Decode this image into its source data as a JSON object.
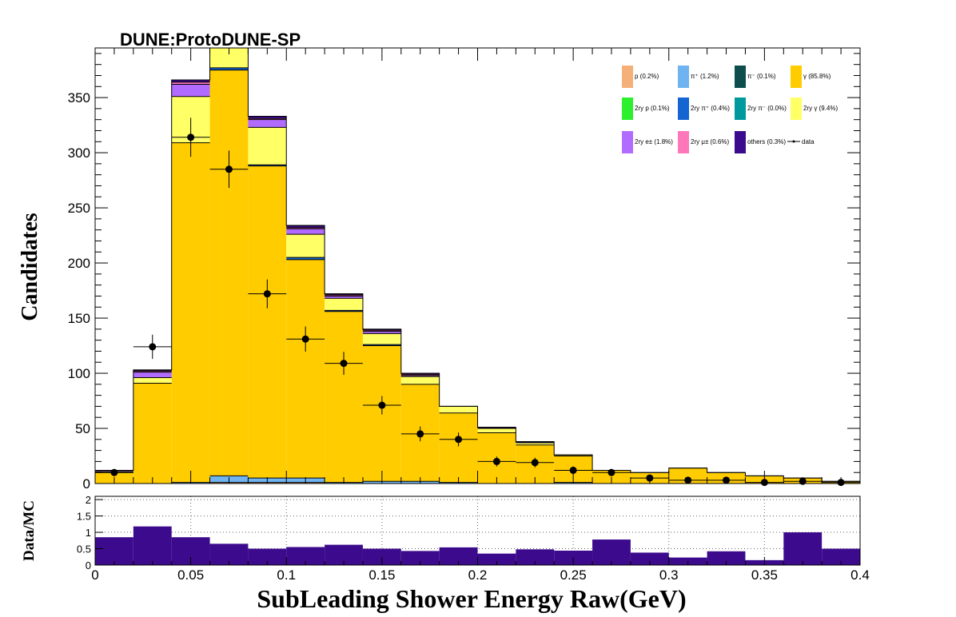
{
  "chart_data": {
    "type": "bar",
    "title": "DUNE:ProtoDUNE-SP",
    "xlabel": "SubLeading Shower Energy Raw(GeV)",
    "ylabel": "Candidates",
    "xlim": [
      0,
      0.4
    ],
    "ylim": [
      0,
      395
    ],
    "x_ticks": [
      "0",
      "0.05",
      "0.1",
      "0.15",
      "0.2",
      "0.25",
      "0.3",
      "0.35",
      "0.4"
    ],
    "y_ticks": [
      "0",
      "50",
      "100",
      "150",
      "200",
      "250",
      "300",
      "350"
    ],
    "stacked": true,
    "bin_edges": [
      0,
      0.02,
      0.04,
      0.06,
      0.08,
      0.1,
      0.12,
      0.14,
      0.16,
      0.18,
      0.2,
      0.22,
      0.24,
      0.26,
      0.28,
      0.3,
      0.32,
      0.34,
      0.36,
      0.38,
      0.4
    ],
    "series": [
      {
        "name": "p (0.2%)",
        "color": "#f5b07a",
        "values": [
          0,
          0,
          0,
          1,
          1,
          1,
          0,
          0,
          0,
          0,
          0,
          0,
          0,
          0,
          0,
          0,
          0,
          0,
          0,
          0
        ]
      },
      {
        "name": "π⁺ (1.2%)",
        "color": "#6fb4f0",
        "values": [
          0,
          0,
          1,
          6,
          4,
          4,
          1,
          2,
          2,
          1,
          0,
          0,
          1,
          0,
          0,
          0,
          0,
          0,
          0,
          0
        ]
      },
      {
        "name": "π⁻ (0.1%)",
        "color": "#0d4d4d",
        "values": [
          0,
          0,
          0,
          0,
          0,
          0,
          0,
          0,
          0,
          0,
          0,
          0,
          0,
          0,
          0,
          0,
          0,
          0,
          0,
          0
        ]
      },
      {
        "name": "γ (85.8%)",
        "color": "#ffcc00",
        "values": [
          10,
          91,
          308,
          368,
          283,
          198,
          155,
          123,
          88,
          63,
          46,
          35,
          24,
          12,
          10,
          14,
          10,
          7,
          5,
          2
        ]
      },
      {
        "name": "2ry p (0.1%)",
        "color": "#2cf02c",
        "values": [
          0,
          0,
          0,
          0,
          0,
          0,
          0,
          0,
          0,
          0,
          0,
          0,
          0,
          0,
          0,
          0,
          0,
          0,
          0,
          0
        ]
      },
      {
        "name": "2ry π⁺ (0.4%)",
        "color": "#1464d2",
        "values": [
          0,
          0,
          0,
          2,
          1,
          2,
          1,
          1,
          0,
          0,
          0,
          0,
          0,
          0,
          0,
          0,
          0,
          0,
          0,
          0
        ]
      },
      {
        "name": "2ry π⁻ (0.0%)",
        "color": "#00999e",
        "values": [
          0,
          0,
          0,
          0,
          0,
          0,
          0,
          0,
          0,
          0,
          0,
          0,
          0,
          0,
          0,
          0,
          0,
          0,
          0,
          0
        ]
      },
      {
        "name": "2ry γ (9.4%)",
        "color": "#ffff66",
        "values": [
          1,
          5,
          42,
          18,
          34,
          21,
          11,
          10,
          7,
          6,
          4,
          2,
          1,
          0,
          0,
          0,
          0,
          0,
          0,
          0
        ]
      },
      {
        "name": "2ry e± (1.8%)",
        "color": "#b26bff",
        "values": [
          1,
          5,
          11,
          0,
          7,
          5,
          2,
          2,
          1,
          0,
          0,
          0,
          0,
          0,
          0,
          0,
          0,
          0,
          0,
          0
        ]
      },
      {
        "name": "2ry μ± (0.6%)",
        "color": "#ff77bb",
        "values": [
          0,
          1,
          2,
          4,
          1,
          1,
          1,
          1,
          1,
          0,
          0,
          0,
          0,
          0,
          0,
          0,
          0,
          0,
          0,
          0
        ]
      },
      {
        "name": "others (0.3%)",
        "color": "#3c0a8c",
        "values": [
          0,
          1,
          2,
          0,
          2,
          2,
          1,
          1,
          1,
          0,
          1,
          1,
          0,
          0,
          0,
          0,
          0,
          0,
          0,
          0
        ]
      }
    ],
    "data": {
      "name": "data",
      "x": [
        0.01,
        0.03,
        0.05,
        0.07,
        0.09,
        0.11,
        0.13,
        0.15,
        0.17,
        0.19,
        0.21,
        0.23,
        0.25,
        0.27,
        0.29,
        0.31,
        0.33,
        0.35,
        0.37,
        0.39
      ],
      "y": [
        10,
        124,
        314,
        285,
        172,
        131,
        109,
        71,
        45,
        40,
        20,
        19,
        12,
        10,
        5,
        3,
        3,
        1,
        2,
        1
      ],
      "yerr": [
        3.2,
        11,
        17.7,
        16.9,
        13.1,
        11.4,
        10.4,
        8.4,
        6.7,
        6.3,
        4.5,
        4.4,
        3.5,
        3.2,
        2.2,
        1.7,
        1.7,
        1,
        1.4,
        1
      ]
    },
    "ratio": {
      "ylabel": "Data/MC",
      "ylim": [
        0,
        2.1
      ],
      "y_ticks": [
        "0",
        "0.5",
        "1",
        "1.5",
        "2"
      ],
      "color": "#3c0a8c",
      "values": [
        0.85,
        1.18,
        0.85,
        0.65,
        0.5,
        0.55,
        0.62,
        0.5,
        0.43,
        0.54,
        0.35,
        0.48,
        0.44,
        0.78,
        0.38,
        0.23,
        0.42,
        0.15,
        1.0,
        0.5
      ]
    },
    "legend_position": "top-right",
    "grid_ratio_panel": true
  }
}
